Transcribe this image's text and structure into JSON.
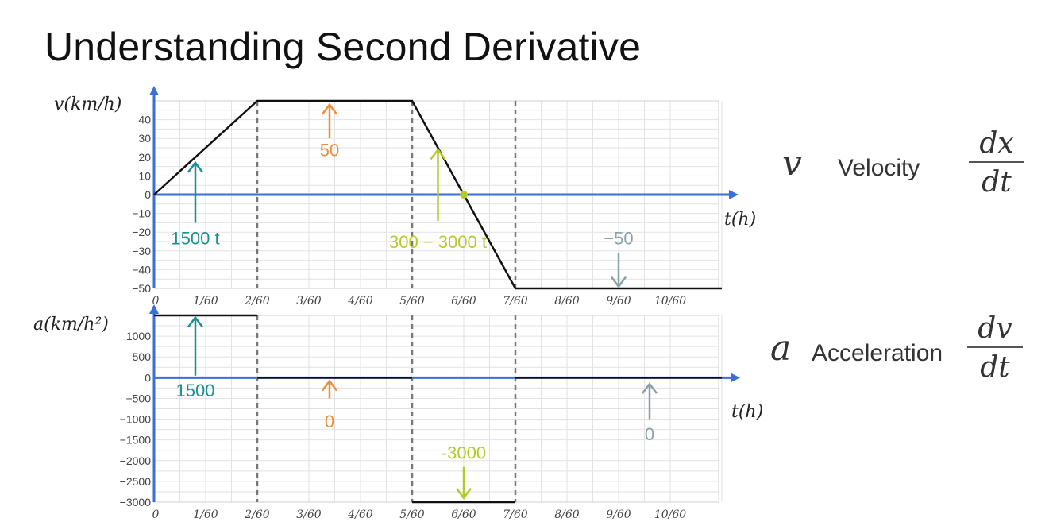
{
  "title": "Understanding Second Derivative",
  "legend": [
    {
      "symbol": "v",
      "name": "Velocity",
      "num": "dx",
      "den": "dt"
    },
    {
      "symbol": "a",
      "name": "Acceleration",
      "num": "dv",
      "den": "dt"
    }
  ],
  "colors": {
    "axis": "#3b6fd8",
    "curve": "#111111",
    "grid": "#e2e2e2",
    "dash": "#777777",
    "teal": "#1d8f8f",
    "orange": "#e8903a",
    "lime": "#b5c92a",
    "slate": "#8aa1a6"
  },
  "chart_data": [
    {
      "type": "line",
      "ylabel": "v(km/h)",
      "xlabel": "t(h)",
      "xlim": [
        0,
        11
      ],
      "ylim": [
        -50,
        50
      ],
      "xticks": [
        {
          "v": 0,
          "label": "0"
        },
        {
          "v": 1,
          "label": "1/60"
        },
        {
          "v": 2,
          "label": "2/60"
        },
        {
          "v": 3,
          "label": "3/60"
        },
        {
          "v": 4,
          "label": "4/60"
        },
        {
          "v": 5,
          "label": "5/60"
        },
        {
          "v": 6,
          "label": "6/60"
        },
        {
          "v": 7,
          "label": "7/60"
        },
        {
          "v": 8,
          "label": "8/60"
        },
        {
          "v": 9,
          "label": "9/60"
        },
        {
          "v": 10,
          "label": "10/60"
        }
      ],
      "yticks": [
        40,
        30,
        20,
        10,
        0,
        -10,
        -20,
        -30,
        -40,
        -50
      ],
      "series": [
        {
          "x": [
            0,
            2,
            5,
            7,
            11
          ],
          "y": [
            0,
            50,
            50,
            -50,
            -50
          ]
        }
      ],
      "dashed_x": [
        2,
        5,
        7
      ],
      "marker": {
        "x": 6,
        "y": 0
      },
      "annotations": [
        {
          "text": "1500 t",
          "x": 0.8,
          "y": -23,
          "color": "teal",
          "arrow": "up",
          "from": -15,
          "to": 17
        },
        {
          "text": "50",
          "x": 3.4,
          "y": 24,
          "color": "orange",
          "arrow": "up",
          "from": 30,
          "to": 48
        },
        {
          "text": "300 − 3000 t",
          "x": 5.5,
          "y": -25,
          "color": "lime",
          "arrow": "up",
          "from": -14,
          "to": 24
        },
        {
          "text": "−50",
          "x": 9.0,
          "y": -23,
          "color": "slate",
          "arrow": "down",
          "from": -31,
          "to": -49
        }
      ]
    },
    {
      "type": "line",
      "ylabel": "a(km/h²)",
      "xlabel": "t(h)",
      "xlim": [
        0,
        11
      ],
      "ylim": [
        -3000,
        1500
      ],
      "xticks": [
        {
          "v": 0,
          "label": "0"
        },
        {
          "v": 1,
          "label": "1/60"
        },
        {
          "v": 2,
          "label": "2/60"
        },
        {
          "v": 3,
          "label": "3/60"
        },
        {
          "v": 4,
          "label": "4/60"
        },
        {
          "v": 5,
          "label": "5/60"
        },
        {
          "v": 6,
          "label": "6/60"
        },
        {
          "v": 7,
          "label": "7/60"
        },
        {
          "v": 8,
          "label": "8/60"
        },
        {
          "v": 9,
          "label": "9/60"
        },
        {
          "v": 10,
          "label": "10/60"
        }
      ],
      "yticks": [
        1000,
        500,
        0,
        -500,
        -1000,
        -1500,
        -2000,
        -2500,
        -3000
      ],
      "segments": [
        {
          "x": [
            0,
            2
          ],
          "y": [
            1500,
            1500
          ]
        },
        {
          "x": [
            2,
            5
          ],
          "y": [
            0,
            0
          ]
        },
        {
          "x": [
            5,
            7
          ],
          "y": [
            -3000,
            -3000
          ]
        },
        {
          "x": [
            7,
            11
          ],
          "y": [
            0,
            0
          ]
        }
      ],
      "dashed_x": [
        2,
        5,
        7
      ],
      "annotations": [
        {
          "text": "1500",
          "x": 0.8,
          "y": -300,
          "color": "teal",
          "arrow": "up",
          "from": 50,
          "to": 1450
        },
        {
          "text": "0",
          "x": 3.4,
          "y": -1050,
          "color": "orange",
          "arrow": "up",
          "from": -500,
          "to": -80
        },
        {
          "text": "-3000",
          "x": 6.0,
          "y": -1800,
          "color": "lime",
          "arrow": "down",
          "from": -2150,
          "to": -2900
        },
        {
          "text": "0",
          "x": 9.6,
          "y": -1350,
          "color": "slate",
          "arrow": "up",
          "from": -1000,
          "to": -150
        }
      ]
    }
  ]
}
